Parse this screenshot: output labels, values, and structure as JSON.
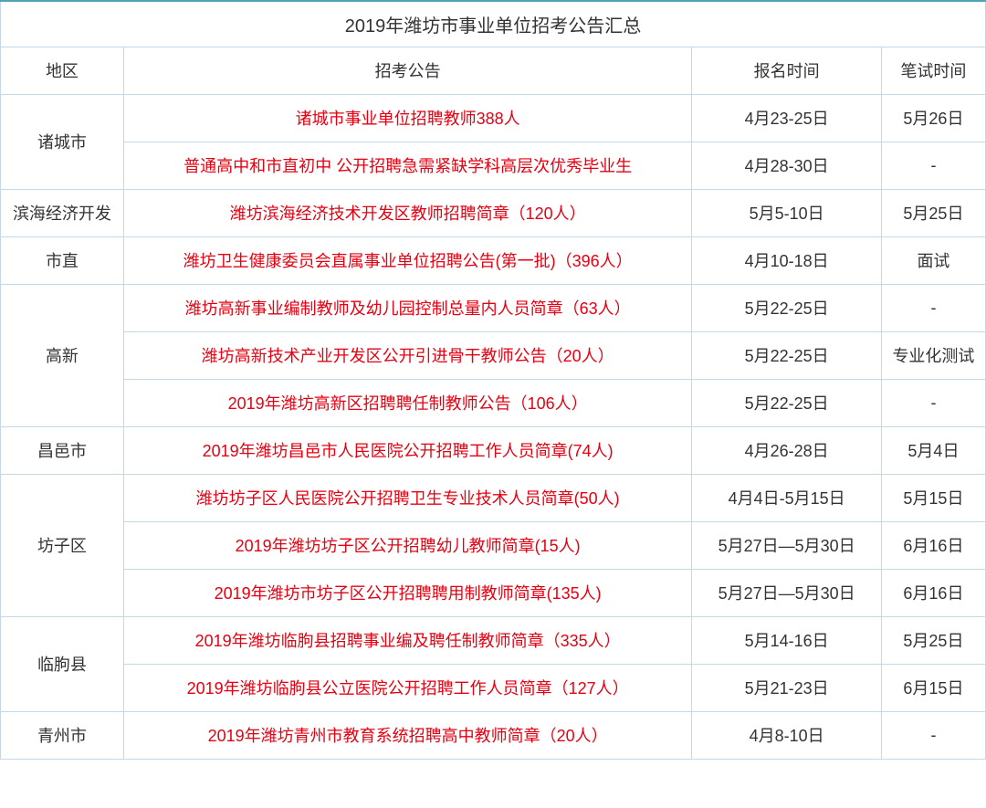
{
  "title": "2019年潍坊市事业单位招考公告汇总",
  "headers": {
    "region": "地区",
    "notice": "招考公告",
    "registration": "报名时间",
    "exam": "笔试时间"
  },
  "colors": {
    "border": "#c5d8e6",
    "top_border": "#4fa3b5",
    "link_text": "#e60012",
    "body_text": "#333333",
    "background": "#ffffff"
  },
  "regions": [
    {
      "name": "诸城市",
      "rows": [
        {
          "notice": "诸城市事业单位招聘教师388人",
          "registration": "4月23-25日",
          "exam": "5月26日"
        },
        {
          "notice": "普通高中和市直初中 公开招聘急需紧缺学科高层次优秀毕业生",
          "registration": "4月28-30日",
          "exam": "-"
        }
      ]
    },
    {
      "name": "滨海经济开发",
      "rows": [
        {
          "notice": "潍坊滨海经济技术开发区教师招聘简章（120人）",
          "registration": "5月5-10日",
          "exam": "5月25日"
        }
      ]
    },
    {
      "name": "市直",
      "rows": [
        {
          "notice": "潍坊卫生健康委员会直属事业单位招聘公告(第一批)（396人）",
          "registration": "4月10-18日",
          "exam": "面试"
        }
      ]
    },
    {
      "name": "高新",
      "rows": [
        {
          "notice": "潍坊高新事业编制教师及幼儿园控制总量内人员简章（63人）",
          "registration": "5月22-25日",
          "exam": "-"
        },
        {
          "notice": "潍坊高新技术产业开发区公开引进骨干教师公告（20人）",
          "registration": "5月22-25日",
          "exam": "专业化测试"
        },
        {
          "notice": "2019年潍坊高新区招聘聘任制教师公告（106人）",
          "registration": "5月22-25日",
          "exam": "-"
        }
      ]
    },
    {
      "name": "昌邑市",
      "rows": [
        {
          "notice": "2019年潍坊昌邑市人民医院公开招聘工作人员简章(74人)",
          "registration": "4月26-28日",
          "exam": "5月4日"
        }
      ]
    },
    {
      "name": "坊子区",
      "rows": [
        {
          "notice": "潍坊坊子区人民医院公开招聘卫生专业技术人员简章(50人)",
          "registration": "4月4日-5月15日",
          "exam": "5月15日"
        },
        {
          "notice": "2019年潍坊坊子区公开招聘幼儿教师简章(15人)",
          "registration": "5月27日—5月30日",
          "exam": "6月16日"
        },
        {
          "notice": "2019年潍坊市坊子区公开招聘聘用制教师简章(135人)",
          "registration": "5月27日—5月30日",
          "exam": "6月16日"
        }
      ]
    },
    {
      "name": "临朐县",
      "rows": [
        {
          "notice": "2019年潍坊临朐县招聘事业编及聘任制教师简章（335人）",
          "registration": "5月14-16日",
          "exam": "5月25日"
        },
        {
          "notice": "2019年潍坊临朐县公立医院公开招聘工作人员简章（127人）",
          "registration": "5月21-23日",
          "exam": "6月15日"
        }
      ]
    },
    {
      "name": "青州市",
      "rows": [
        {
          "notice": "2019年潍坊青州市教育系统招聘高中教师简章（20人）",
          "registration": "4月8-10日",
          "exam": "-"
        }
      ]
    }
  ]
}
